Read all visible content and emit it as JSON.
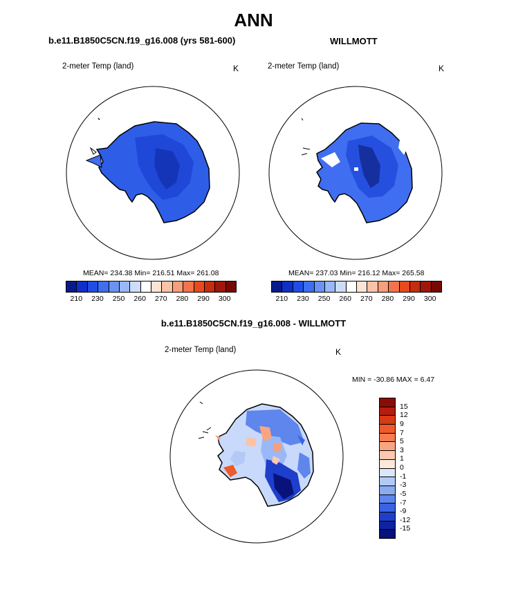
{
  "title": "ANN",
  "panels": [
    {
      "title": "b.e11.B1850C5CN.f19_g16.008 (yrs 581-600)",
      "variable": "2-meter Temp (land)",
      "unit": "K",
      "stats": "MEAN= 234.38  Min= 216.51  Max= 261.08"
    },
    {
      "title": "WILLMOTT",
      "variable": "2-meter Temp (land)",
      "unit": "K",
      "stats": "MEAN= 237.03  Min= 216.12  Max= 265.58"
    },
    {
      "title": "b.e11.B1850C5CN.f19_g16.008 - WILLMOTT",
      "variable": "2-meter Temp (land)",
      "unit": "K",
      "stats": "MIN = -30.86 MAX =   6.47"
    }
  ],
  "temp_colorbar": {
    "labels": [
      "210",
      "230",
      "250",
      "260",
      "270",
      "280",
      "290",
      "300"
    ],
    "colors": [
      "#0a1a8c",
      "#1030c8",
      "#1f4ee6",
      "#3f6ef0",
      "#6a93f3",
      "#9ab8f7",
      "#cddcfb",
      "#ffffff",
      "#fde3d4",
      "#fbc3a6",
      "#f79e7a",
      "#f3744a",
      "#e84a1e",
      "#c62c0d",
      "#a0160a",
      "#780804"
    ]
  },
  "diff_colorbar": {
    "labels": [
      "15",
      "12",
      "9",
      "7",
      "5",
      "3",
      "1",
      "0",
      "-1",
      "-3",
      "-5",
      "-7",
      "-9",
      "-12",
      "-15"
    ],
    "colors": [
      "#8a0c08",
      "#b41e0c",
      "#d83a16",
      "#ef5a2a",
      "#f57d50",
      "#f9a582",
      "#fcc9ae",
      "#fde9dc",
      "#dbe6fb",
      "#b3c9f6",
      "#8aabf2",
      "#5f86ec",
      "#3a63e4",
      "#1e3fcc",
      "#0f22a0",
      "#08127a"
    ]
  }
}
